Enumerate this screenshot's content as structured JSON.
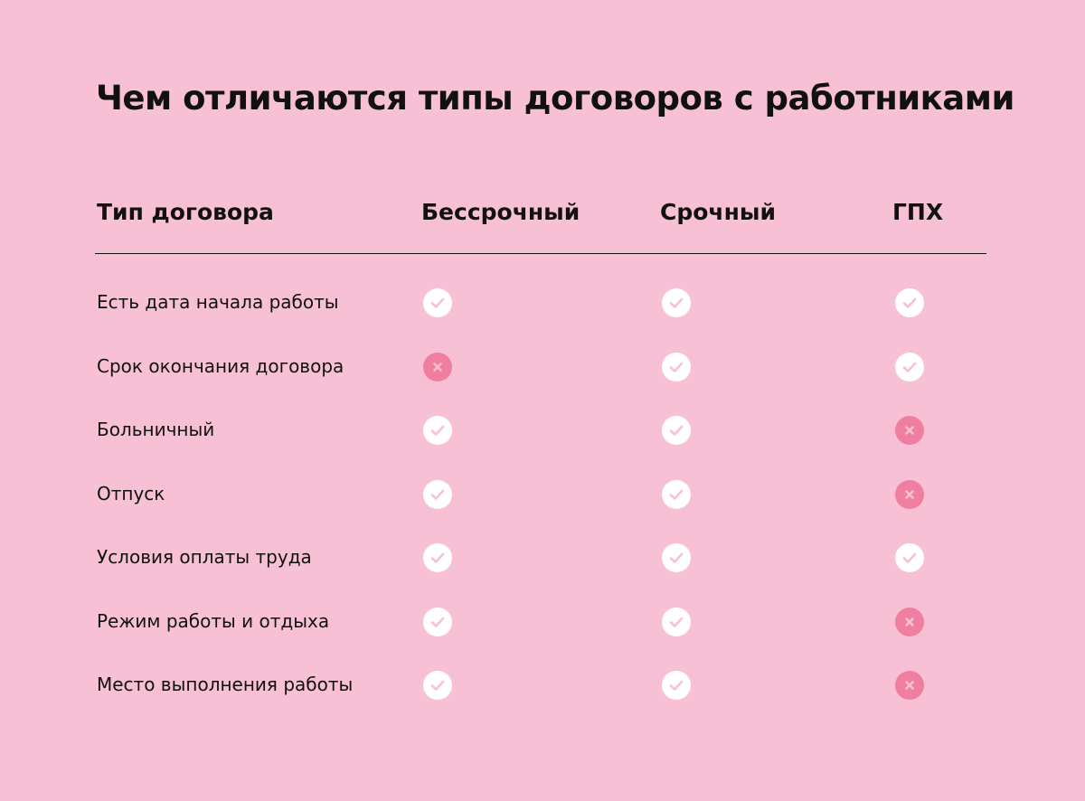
{
  "title": "Чем отличаются типы договоров с работниками",
  "table": {
    "headers": [
      "Тип договора",
      "Бессрочный",
      "Срочный",
      "ГПХ"
    ],
    "rows": [
      {
        "label": "Есть дата начала работы",
        "values": [
          "yes",
          "yes",
          "yes"
        ]
      },
      {
        "label": "Срок окончания договора",
        "values": [
          "no",
          "yes",
          "yes"
        ]
      },
      {
        "label": "Больничный",
        "values": [
          "yes",
          "yes",
          "no"
        ]
      },
      {
        "label": "Отпуск",
        "values": [
          "yes",
          "yes",
          "no"
        ]
      },
      {
        "label": "Условия оплаты труда",
        "values": [
          "yes",
          "yes",
          "yes"
        ]
      },
      {
        "label": "Режим работы и отдыха",
        "values": [
          "yes",
          "yes",
          "no"
        ]
      },
      {
        "label": "Место выполнения работы",
        "values": [
          "yes",
          "yes",
          "no"
        ]
      }
    ]
  },
  "icons": {
    "yes": "check-icon",
    "no": "cross-icon"
  },
  "colors": {
    "background": "#f8c0d4",
    "check_circle": "#ffffff",
    "check_mark": "#f8c0d4",
    "cross_circle": "#f07ea0",
    "cross_mark": "#f8c0d4",
    "text": "#111111"
  }
}
